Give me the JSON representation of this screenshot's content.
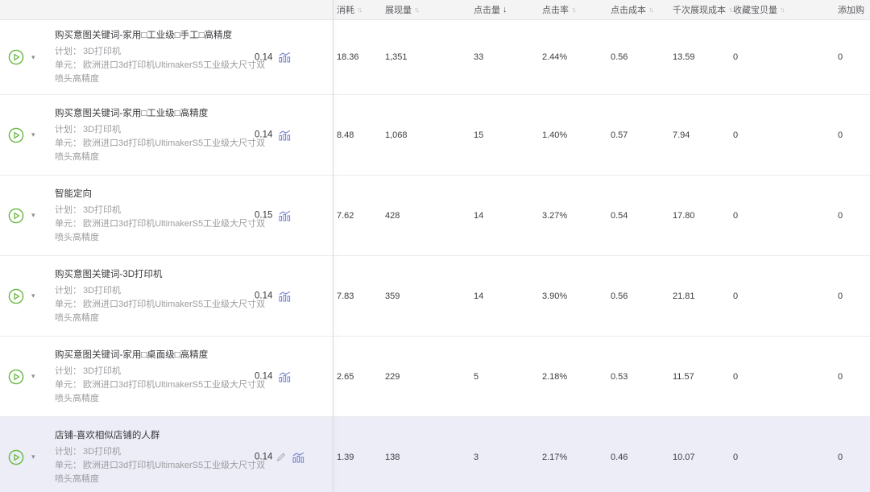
{
  "colors": {
    "header_bg": "#f4f4f5",
    "row_highlight_bg": "#ecedf6",
    "divider": "#d9d9de",
    "row_border": "#ebebee",
    "play_green": "#66b83e",
    "chart_icon_blue": "#7480ce",
    "edit_icon_gray": "#a6a6aa",
    "text_primary": "#3d3d41",
    "text_secondary": "#9c9ca0",
    "sort_inactive": "#b9b9bd",
    "sort_active": "#48484c"
  },
  "icons": {
    "play": "play-circle-icon",
    "dropdown": "caret-down-icon",
    "chart": "bar-chart-trend-icon",
    "edit": "pencil-icon",
    "sort_both_glyph": "↑↓",
    "sort_desc_glyph": "↓",
    "caret_glyph": "▾"
  },
  "table": {
    "columns": [
      {
        "key": "consume",
        "label": "消耗",
        "sort": "both"
      },
      {
        "key": "impressions",
        "label": "展现量",
        "sort": "both"
      },
      {
        "key": "clicks",
        "label": "点击量",
        "sort": "desc"
      },
      {
        "key": "ctr",
        "label": "点击率",
        "sort": "both"
      },
      {
        "key": "cpc",
        "label": "点击成本",
        "sort": "both"
      },
      {
        "key": "cpm",
        "label": "千次展现成本",
        "sort": "both"
      },
      {
        "key": "favorites",
        "label": "收藏宝贝量",
        "sort": "both"
      },
      {
        "key": "addcart",
        "label": "添加购",
        "sort": "none"
      }
    ],
    "rows": [
      {
        "title": "购买意图关键词-家用□工业级□手工□高精度",
        "plan_label": "计划：",
        "plan": "3D打印机",
        "unit_label": "单元：",
        "unit": "欧洲进口3d打印机UltimakerS5工业级大尺寸双喷头高精度",
        "bid": "0.14",
        "highlighted": false,
        "has_edit_icon": false,
        "metrics": {
          "consume": "18.36",
          "impressions": "1,351",
          "clicks": "33",
          "ctr": "2.44%",
          "cpc": "0.56",
          "cpm": "13.59",
          "favorites": "0",
          "addcart": "0"
        }
      },
      {
        "title": "购买意图关键词-家用□工业级□高精度",
        "plan_label": "计划：",
        "plan": "3D打印机",
        "unit_label": "单元：",
        "unit": "欧洲进口3d打印机UltimakerS5工业级大尺寸双喷头高精度",
        "bid": "0.14",
        "highlighted": false,
        "has_edit_icon": false,
        "metrics": {
          "consume": "8.48",
          "impressions": "1,068",
          "clicks": "15",
          "ctr": "1.40%",
          "cpc": "0.57",
          "cpm": "7.94",
          "favorites": "0",
          "addcart": "0"
        }
      },
      {
        "title": "智能定向",
        "plan_label": "计划：",
        "plan": "3D打印机",
        "unit_label": "单元：",
        "unit": "欧洲进口3d打印机UltimakerS5工业级大尺寸双喷头高精度",
        "bid": "0.15",
        "highlighted": false,
        "has_edit_icon": false,
        "metrics": {
          "consume": "7.62",
          "impressions": "428",
          "clicks": "14",
          "ctr": "3.27%",
          "cpc": "0.54",
          "cpm": "17.80",
          "favorites": "0",
          "addcart": "0"
        }
      },
      {
        "title": "购买意图关键词-3D打印机",
        "plan_label": "计划：",
        "plan": "3D打印机",
        "unit_label": "单元：",
        "unit": "欧洲进口3d打印机UltimakerS5工业级大尺寸双喷头高精度",
        "bid": "0.14",
        "highlighted": false,
        "has_edit_icon": false,
        "metrics": {
          "consume": "7.83",
          "impressions": "359",
          "clicks": "14",
          "ctr": "3.90%",
          "cpc": "0.56",
          "cpm": "21.81",
          "favorites": "0",
          "addcart": "0"
        }
      },
      {
        "title": "购买意图关键词-家用□桌面级□高精度",
        "plan_label": "计划：",
        "plan": "3D打印机",
        "unit_label": "单元：",
        "unit": "欧洲进口3d打印机UltimakerS5工业级大尺寸双喷头高精度",
        "bid": "0.14",
        "highlighted": false,
        "has_edit_icon": false,
        "metrics": {
          "consume": "2.65",
          "impressions": "229",
          "clicks": "5",
          "ctr": "2.18%",
          "cpc": "0.53",
          "cpm": "11.57",
          "favorites": "0",
          "addcart": "0"
        }
      },
      {
        "title": "店铺-喜欢相似店铺的人群",
        "plan_label": "计划：",
        "plan": "3D打印机",
        "unit_label": "单元：",
        "unit": "欧洲进口3d打印机UltimakerS5工业级大尺寸双喷头高精度",
        "bid": "0.14",
        "highlighted": true,
        "has_edit_icon": true,
        "metrics": {
          "consume": "1.39",
          "impressions": "138",
          "clicks": "3",
          "ctr": "2.17%",
          "cpc": "0.46",
          "cpm": "10.07",
          "favorites": "0",
          "addcart": "0"
        }
      }
    ]
  }
}
